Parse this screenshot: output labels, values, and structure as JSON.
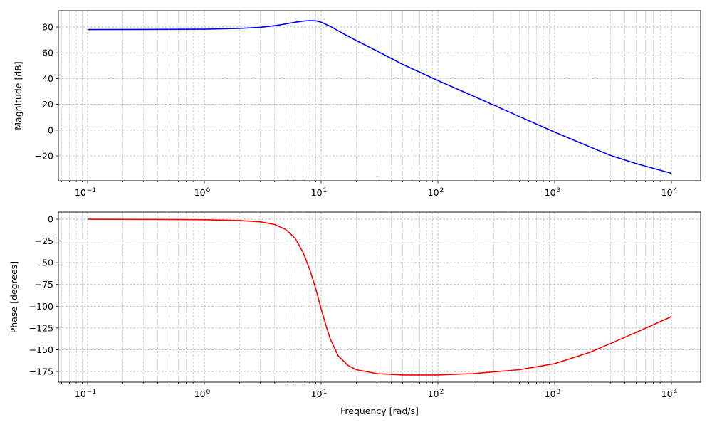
{
  "chart_data": [
    {
      "type": "line",
      "title": "",
      "xlabel": "",
      "ylabel": "Magnitude [dB]",
      "xscale": "log",
      "xlim": [
        0.056,
        17800
      ],
      "ylim": [
        -39.3,
        92.7
      ],
      "grid": true,
      "xticks": [
        "10^-1",
        "10^0",
        "10^1",
        "10^2",
        "10^3",
        "10^4"
      ],
      "yticks": [
        80,
        60,
        40,
        20,
        0,
        -20
      ],
      "series": [
        {
          "name": "magnitude",
          "color": "#0000ff",
          "x": [
            0.1,
            0.3,
            1,
            2,
            3,
            4,
            5,
            6,
            7,
            8,
            9,
            10,
            12,
            15,
            20,
            30,
            50,
            100,
            200,
            500,
            1000,
            2000,
            3000,
            5000,
            10000
          ],
          "y": [
            78.0,
            78.1,
            78.3,
            78.9,
            79.8,
            81.0,
            82.4,
            83.7,
            84.6,
            85.0,
            84.8,
            83.8,
            80.5,
            75.5,
            69.5,
            61.5,
            51.0,
            38.5,
            26.5,
            10.5,
            -1.5,
            -13.0,
            -19.5,
            -26.0,
            -33.5
          ]
        }
      ]
    },
    {
      "type": "line",
      "title": "",
      "xlabel": "Frequency [rad/s]",
      "ylabel": "Phase [degrees]",
      "xscale": "log",
      "xlim": [
        0.056,
        17800
      ],
      "ylim": [
        -187.3,
        8.2
      ],
      "grid": true,
      "xticks": [
        "10^-1",
        "10^0",
        "10^1",
        "10^2",
        "10^3",
        "10^4"
      ],
      "yticks": [
        0,
        -25,
        -50,
        -75,
        -100,
        -125,
        -150,
        -175
      ],
      "series": [
        {
          "name": "phase",
          "color": "#ff0000",
          "x": [
            0.1,
            0.5,
            1,
            2,
            3,
            4,
            5,
            6,
            7,
            8,
            9,
            10,
            11,
            12,
            14,
            17,
            20,
            30,
            50,
            100,
            200,
            500,
            1000,
            2000,
            3000,
            5000,
            10000
          ],
          "y": [
            0,
            -0.3,
            -0.6,
            -1.5,
            -3,
            -6,
            -12,
            -22,
            -38,
            -58,
            -80,
            -103,
            -122,
            -138,
            -157,
            -168,
            -173,
            -177.5,
            -179,
            -179,
            -177.5,
            -173,
            -166,
            -153,
            -143,
            -130,
            -112
          ]
        }
      ]
    }
  ],
  "plots": {
    "top": {
      "ylabel": "Magnitude [dB]",
      "yticks": [
        "80",
        "60",
        "40",
        "20",
        "0",
        "−20"
      ]
    },
    "bottom": {
      "ylabel": "Phase [degrees]",
      "xlabel": "Frequency [rad/s]",
      "yticks": [
        "0",
        "−25",
        "−50",
        "−75",
        "−100",
        "−125",
        "−150",
        "−175"
      ]
    },
    "xtick_base": "10",
    "xtick_exps": [
      "−1",
      "0",
      "1",
      "2",
      "3",
      "4"
    ]
  }
}
